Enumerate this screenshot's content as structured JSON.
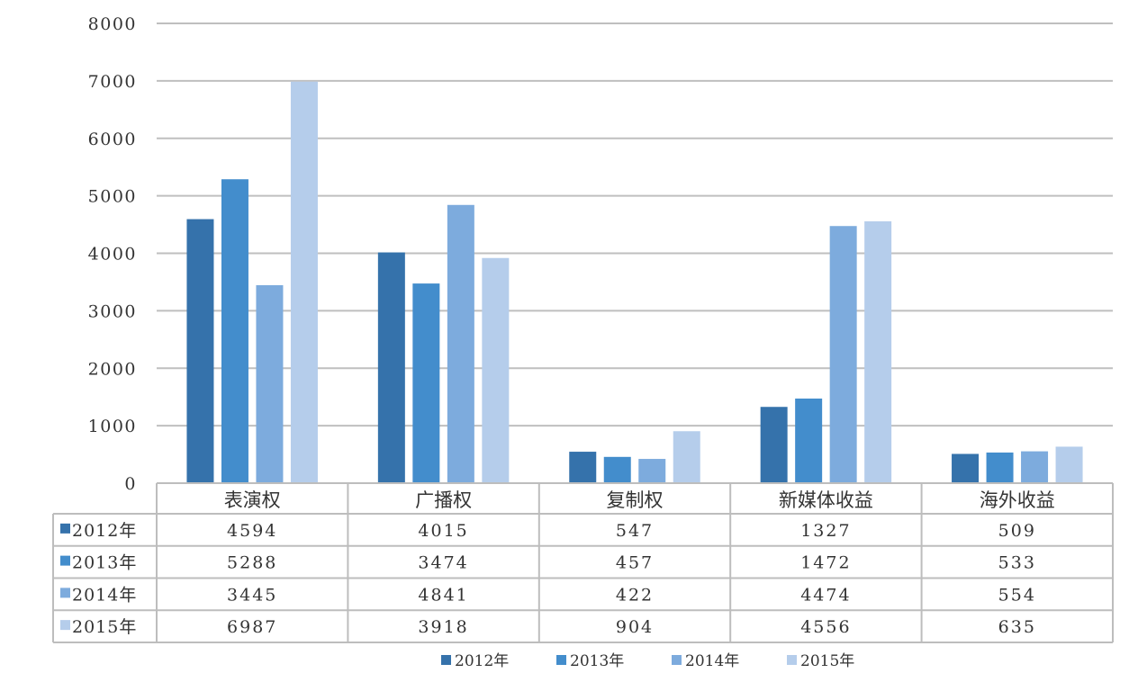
{
  "chart_data": {
    "type": "bar",
    "categories": [
      "表演权",
      "广播权",
      "复制权",
      "新媒体收益",
      "海外收益"
    ],
    "series": [
      {
        "name": "2012年",
        "values": [
          4594,
          4015,
          547,
          1327,
          509
        ],
        "color": "#3572ab"
      },
      {
        "name": "2013年",
        "values": [
          5288,
          3474,
          457,
          1472,
          533
        ],
        "color": "#438dcc"
      },
      {
        "name": "2014年",
        "values": [
          3445,
          4841,
          422,
          4474,
          554
        ],
        "color": "#7dabdd"
      },
      {
        "name": "2015年",
        "values": [
          6987,
          3918,
          904,
          4556,
          635
        ],
        "color": "#b5cdeb"
      }
    ],
    "ylim": [
      0,
      8000
    ],
    "yticks": [
      "0",
      "1000",
      "2000",
      "3000",
      "4000",
      "5000",
      "6000",
      "7000",
      "8000"
    ],
    "grid": true,
    "legend": "bottom",
    "data_table": true
  }
}
